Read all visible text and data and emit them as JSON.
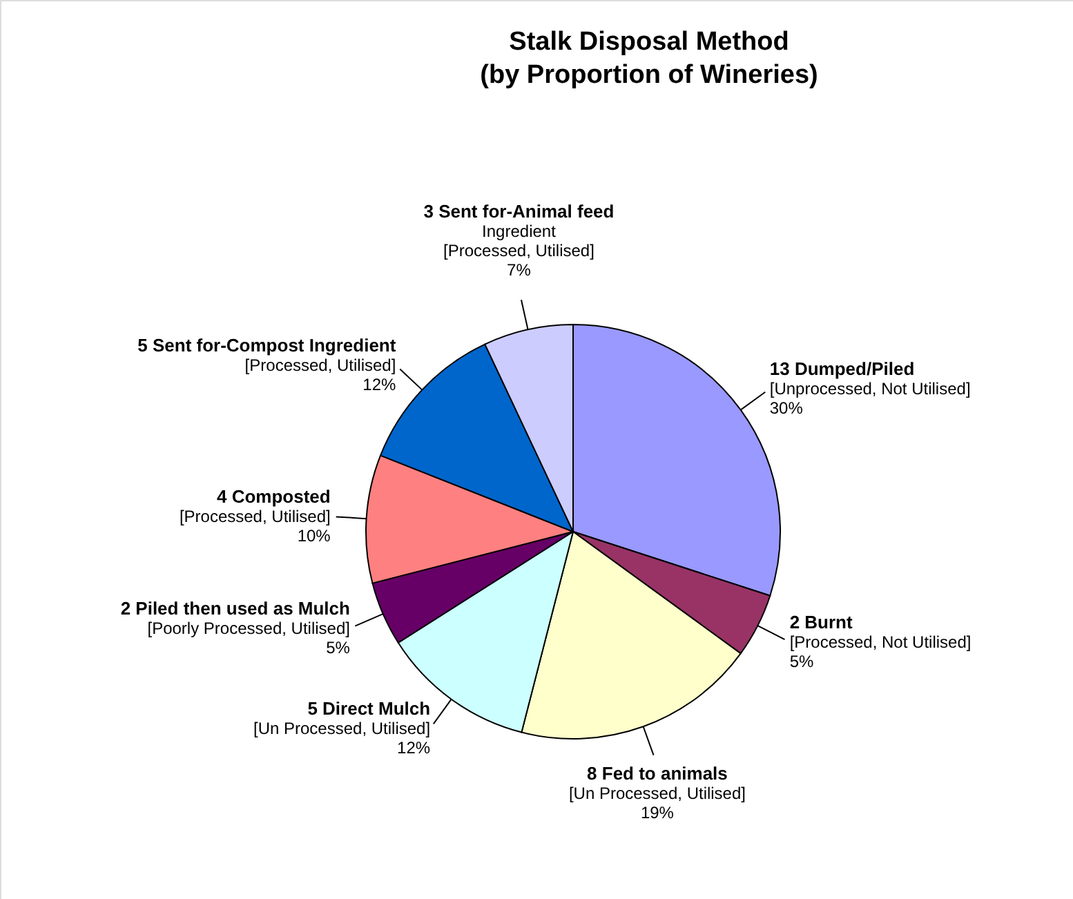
{
  "chart_data": {
    "type": "pie",
    "title": "Stalk Disposal Method\n(by Proportion of Wineries)",
    "categories": [
      "13 Dumped/Piled\n[Unprocessed, Not Utilised]",
      "2 Burnt\n[Processed, Not Utilised]",
      "8 Fed to animals\n[Un Processed, Utilised]",
      "5 Direct Mulch\n[Un Processed, Utilised]",
      "2 Piled then used as Mulch\n[Poorly Processed, Utilised]",
      "4 Composted\n[Processed, Utilised]",
      "5 Sent for-Compost Ingredient\n[Processed, Utilised]",
      "3 Sent for-Animal feed\nIngredient\n[Processed, Utilised]"
    ],
    "values": [
      30,
      5,
      19,
      12,
      5,
      10,
      12,
      7
    ],
    "colors": [
      "#9999ff",
      "#993366",
      "#ffffcc",
      "#ccffff",
      "#660066",
      "#ff8080",
      "#0066cc",
      "#ccccff"
    ],
    "value_labels": [
      "30%",
      "5%",
      "19%",
      "12%",
      "5%",
      "10%",
      "12%",
      "7%"
    ]
  }
}
